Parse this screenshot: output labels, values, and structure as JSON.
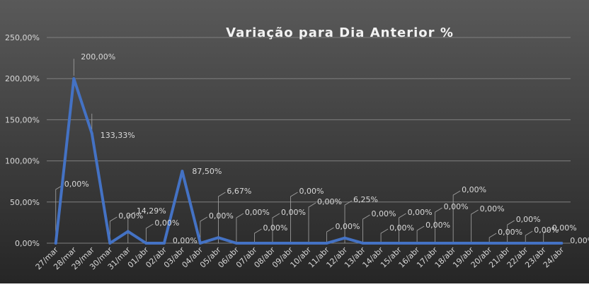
{
  "chart_data": {
    "type": "line",
    "title": "Variação para Dia Anterior %",
    "xlabel": "",
    "ylabel": "",
    "ylim": [
      0,
      250
    ],
    "yticks": [
      "0,00%",
      "50,00%",
      "100,00%",
      "150,00%",
      "200,00%",
      "250,00%"
    ],
    "grid": true,
    "legend": "none",
    "categories": [
      "27/mar",
      "28/mar",
      "29/mar",
      "30/mar",
      "31/mar",
      "01/abr",
      "02/abr",
      "03/abr",
      "04/abr",
      "05/abr",
      "06/abr",
      "07/abr",
      "08/abr",
      "09/abr",
      "10/abr",
      "11/abr",
      "12/abr",
      "13/abr",
      "14/abr",
      "15/abr",
      "16/abr",
      "17/abr",
      "18/abr",
      "19/abr",
      "20/abr",
      "21/abr",
      "22/abr",
      "23/abr",
      "24/abr"
    ],
    "series": [
      {
        "values": [
          0,
          200,
          133.33,
          0,
          14.29,
          0,
          0,
          87.5,
          0,
          6.67,
          0,
          0,
          0,
          0,
          0,
          0,
          6.25,
          0,
          0,
          0,
          0,
          0,
          0,
          0,
          0,
          0,
          0,
          0,
          0
        ],
        "labels": [
          "0,00%",
          "200,00%",
          "133,33%",
          "0,00%",
          "14,29%",
          "0,00%",
          "0,00%",
          "87,50%",
          "0,00%",
          "6,67%",
          "0,00%",
          "0,00%",
          "0,00%",
          "0,00%",
          "0,00%",
          "0,00%",
          "6,25%",
          "0,00%",
          "0,00%",
          "0,00%",
          "0,00%",
          "0,00%",
          "0,00%",
          "0,00%",
          "0,00%",
          "0,00%",
          "0,00%",
          "0,00%",
          "0,00%"
        ]
      }
    ],
    "colors": {
      "line": "#4472c4",
      "background_start": "#595959",
      "background_end": "#262626",
      "grid": "#7f7f7f",
      "text": "#d9d9d9",
      "title": "#f2f2f2"
    }
  }
}
